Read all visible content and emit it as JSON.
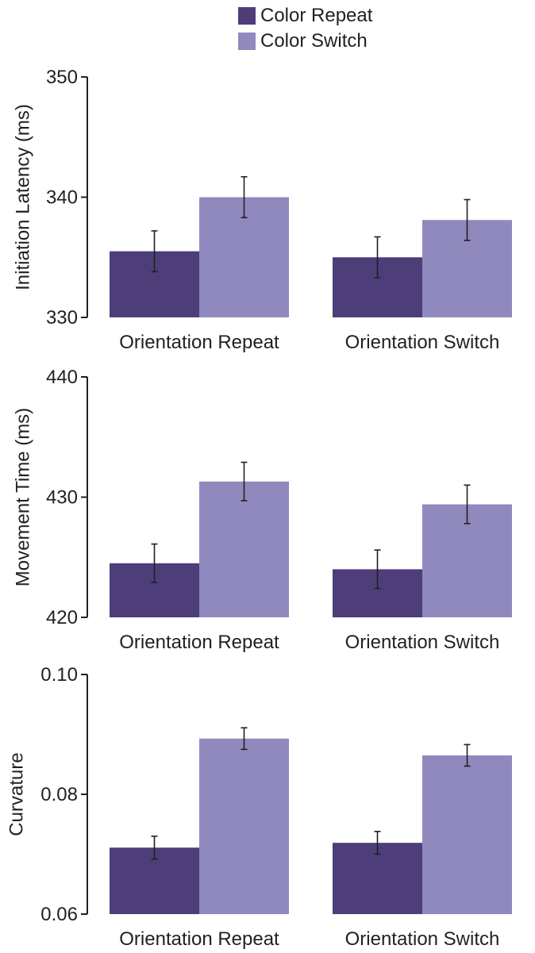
{
  "legend": {
    "color_repeat": "Color Repeat",
    "color_switch": "Color Switch"
  },
  "colors": {
    "color_repeat": "#4d3e7a",
    "color_switch": "#9089bd",
    "axis": "#231f20",
    "text": "#231f20"
  },
  "chart_data": [
    {
      "type": "bar",
      "title": "",
      "xlabel": "",
      "ylabel": "Initiation Latency (ms)",
      "ylim": [
        330,
        350
      ],
      "yticks": [
        "330",
        "340",
        "350"
      ],
      "categories": [
        "Orientation Repeat",
        "Orientation Switch"
      ],
      "series": [
        {
          "name": "Color Repeat",
          "values": [
            335.5,
            335.0
          ],
          "errors": [
            1.7,
            1.7
          ]
        },
        {
          "name": "Color Switch",
          "values": [
            340.0,
            338.1
          ],
          "errors": [
            1.7,
            1.7
          ]
        }
      ]
    },
    {
      "type": "bar",
      "title": "",
      "xlabel": "",
      "ylabel": "Movement Time (ms)",
      "ylim": [
        420,
        440
      ],
      "yticks": [
        "420",
        "430",
        "440"
      ],
      "categories": [
        "Orientation Repeat",
        "Orientation Switch"
      ],
      "series": [
        {
          "name": "Color Repeat",
          "values": [
            424.5,
            424.0
          ],
          "errors": [
            1.6,
            1.6
          ]
        },
        {
          "name": "Color Switch",
          "values": [
            431.3,
            429.4
          ],
          "errors": [
            1.6,
            1.6
          ]
        }
      ]
    },
    {
      "type": "bar",
      "title": "",
      "xlabel": "",
      "ylabel": "Curvature",
      "ylim": [
        0.06,
        0.1
      ],
      "yticks": [
        "0.06",
        "0.08",
        "0.10"
      ],
      "categories": [
        "Orientation Repeat",
        "Orientation Switch"
      ],
      "series": [
        {
          "name": "Color Repeat",
          "values": [
            0.0711,
            0.0719
          ],
          "errors": [
            0.0019,
            0.0019
          ]
        },
        {
          "name": "Color Switch",
          "values": [
            0.0893,
            0.0865
          ],
          "errors": [
            0.0018,
            0.0018
          ]
        }
      ]
    }
  ]
}
